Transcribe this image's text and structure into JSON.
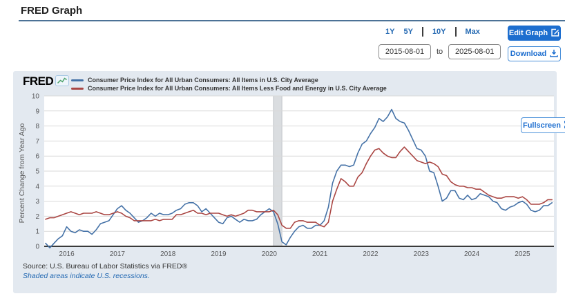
{
  "header": {
    "title": "FRED Graph"
  },
  "controls": {
    "ranges": [
      "1Y",
      "5Y",
      "10Y",
      "Max"
    ],
    "date_start": "2015-08-01",
    "date_separator": "to",
    "date_end": "2025-08-01",
    "edit_graph_label": "Edit Graph",
    "download_label": "Download"
  },
  "branding": {
    "logo_text": "FRED"
  },
  "footer": {
    "source": "Source: U.S. Bureau of Labor Statistics via FRED®",
    "recession_note": "Shaded areas indicate U.S. recessions.",
    "fullscreen_label": "Fullscreen"
  },
  "chart_data": {
    "type": "line",
    "frequency": "monthly",
    "x_start": "2015-08",
    "x_end": "2025-08",
    "ylabel": "Percent Change from Year Ago",
    "ylim": [
      0,
      10
    ],
    "y_ticks": [
      0,
      1,
      2,
      3,
      4,
      5,
      6,
      7,
      8,
      9,
      10
    ],
    "x_tick_labels": [
      "2016",
      "2017",
      "2018",
      "2019",
      "2020",
      "2021",
      "2022",
      "2023",
      "2024",
      "2025"
    ],
    "grid": "horizontal",
    "legend_position": "top-left",
    "recessions": [
      {
        "start": "2020-02",
        "end": "2020-04"
      }
    ],
    "colors": {
      "grid": "#d9d9d9",
      "axis": "#3a3a3a",
      "recession_fill": "#dadde0",
      "recession_edge": "#c0c4c8",
      "tick_text": "#58595b"
    },
    "series": [
      {
        "name": "Consumer Price Index for All Urban Consumers: All Items in U.S. City Average",
        "color": "#4572a7",
        "values": [
          0.2,
          -0.1,
          0.2,
          0.5,
          0.7,
          1.3,
          1.0,
          0.9,
          1.1,
          1.0,
          1.0,
          0.8,
          1.1,
          1.5,
          1.6,
          1.7,
          2.1,
          2.5,
          2.7,
          2.4,
          2.2,
          1.9,
          1.6,
          1.7,
          1.9,
          2.2,
          2.0,
          2.2,
          2.1,
          2.1,
          2.2,
          2.4,
          2.5,
          2.8,
          2.9,
          2.9,
          2.7,
          2.3,
          2.5,
          2.2,
          1.9,
          1.6,
          1.5,
          1.9,
          2.0,
          1.8,
          1.6,
          1.8,
          1.7,
          1.7,
          1.8,
          2.1,
          2.3,
          2.5,
          2.3,
          1.5,
          0.3,
          0.1,
          0.6,
          1.0,
          1.3,
          1.4,
          1.2,
          1.2,
          1.4,
          1.4,
          1.7,
          2.6,
          4.2,
          5.0,
          5.4,
          5.4,
          5.3,
          5.4,
          6.2,
          6.8,
          7.0,
          7.5,
          7.9,
          8.5,
          8.3,
          8.6,
          9.1,
          8.5,
          8.3,
          8.2,
          7.7,
          7.1,
          6.5,
          6.4,
          6.0,
          5.0,
          4.9,
          4.0,
          3.0,
          3.2,
          3.7,
          3.7,
          3.2,
          3.1,
          3.4,
          3.1,
          3.2,
          3.5,
          3.4,
          3.3,
          3.0,
          2.9,
          2.5,
          2.4,
          2.6,
          2.7,
          2.9,
          3.0,
          2.8,
          2.4,
          2.3,
          2.4,
          2.7,
          2.7,
          2.9
        ]
      },
      {
        "name": "Consumer Price Index for All Urban Consumers: All Items Less Food and Energy in U.S. City Average",
        "color": "#aa4643",
        "values": [
          1.8,
          1.9,
          1.9,
          2.0,
          2.1,
          2.2,
          2.3,
          2.2,
          2.1,
          2.2,
          2.2,
          2.2,
          2.3,
          2.2,
          2.1,
          2.1,
          2.2,
          2.3,
          2.2,
          2.0,
          1.9,
          1.7,
          1.7,
          1.7,
          1.7,
          1.7,
          1.8,
          1.7,
          1.8,
          1.8,
          1.8,
          2.1,
          2.1,
          2.2,
          2.3,
          2.4,
          2.2,
          2.2,
          2.1,
          2.2,
          2.2,
          2.2,
          2.1,
          2.0,
          2.1,
          2.0,
          2.1,
          2.2,
          2.4,
          2.4,
          2.3,
          2.3,
          2.3,
          2.3,
          2.4,
          2.1,
          1.4,
          1.2,
          1.2,
          1.6,
          1.7,
          1.7,
          1.6,
          1.6,
          1.6,
          1.4,
          1.3,
          1.6,
          3.0,
          3.8,
          4.5,
          4.3,
          4.0,
          4.0,
          4.6,
          4.9,
          5.5,
          6.0,
          6.4,
          6.5,
          6.2,
          6.0,
          5.9,
          5.9,
          6.3,
          6.6,
          6.3,
          6.0,
          5.7,
          5.6,
          5.5,
          5.6,
          5.5,
          5.3,
          4.8,
          4.7,
          4.3,
          4.1,
          4.0,
          4.0,
          3.9,
          3.9,
          3.8,
          3.8,
          3.6,
          3.4,
          3.3,
          3.2,
          3.2,
          3.3,
          3.3,
          3.3,
          3.2,
          3.3,
          3.1,
          2.8,
          2.8,
          2.8,
          2.9,
          3.1,
          3.1
        ]
      }
    ]
  }
}
